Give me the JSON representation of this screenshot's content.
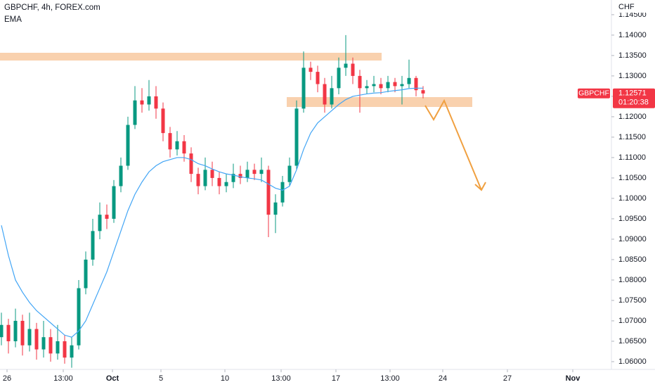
{
  "chart_data": {
    "type": "candlestick",
    "title": "GBPCHF, 4h, FOREX.com",
    "currency": "CHF",
    "last_price": 1.12571,
    "countdown": "01:20:38",
    "ylim": [
      1.0581,
      1.1486
    ],
    "yticks": [
      {
        "value": 1.06,
        "label": "1.06000"
      },
      {
        "value": 1.065,
        "label": "1.06500"
      },
      {
        "value": 1.07,
        "label": "1.07000"
      },
      {
        "value": 1.075,
        "label": "1.07500"
      },
      {
        "value": 1.08,
        "label": "1.08000"
      },
      {
        "value": 1.085,
        "label": "1.08500"
      },
      {
        "value": 1.09,
        "label": "1.09000"
      },
      {
        "value": 1.095,
        "label": "1.09500"
      },
      {
        "value": 1.1,
        "label": "1.10000"
      },
      {
        "value": 1.105,
        "label": "1.10500"
      },
      {
        "value": 1.11,
        "label": "1.11000"
      },
      {
        "value": 1.115,
        "label": "1.11500"
      },
      {
        "value": 1.12,
        "label": "1.12000"
      },
      {
        "value": 1.125,
        "label": "1.12500"
      },
      {
        "value": 1.13,
        "label": "1.13000"
      },
      {
        "value": 1.135,
        "label": "1.13500"
      },
      {
        "value": 1.14,
        "label": "1.14000"
      },
      {
        "value": 1.145,
        "label": "1.14500"
      }
    ],
    "xlim": [
      -0.2,
      86.8
    ],
    "xticks": [
      {
        "value": 0.8,
        "label": "26"
      },
      {
        "value": 8.8,
        "label": "13:00"
      },
      {
        "value": 15.8,
        "label": "Oct"
      },
      {
        "value": 22.7,
        "label": "5"
      },
      {
        "value": 31.8,
        "label": "10"
      },
      {
        "value": 39.8,
        "label": "13:00"
      },
      {
        "value": 47.6,
        "label": "17"
      },
      {
        "value": 55.3,
        "label": "13:00"
      },
      {
        "value": 62.8,
        "label": "24"
      },
      {
        "value": 72,
        "label": "27"
      },
      {
        "value": 81.3,
        "label": "Nov"
      }
    ],
    "grid": false,
    "series": [
      {
        "name": "GBPCHF",
        "type": "candlestick",
        "up_color": "#089981",
        "down_color": "#f23645",
        "open": [
          1.066,
          1.069,
          1.065,
          1.07,
          1.064,
          1.068,
          1.063,
          1.066,
          1.062,
          1.065,
          1.061,
          1.064,
          1.078,
          1.085,
          1.092,
          1.096,
          1.095,
          1.103,
          1.108,
          1.118,
          1.124,
          1.123,
          1.125,
          1.122,
          1.116,
          1.112,
          1.114,
          1.111,
          1.106,
          1.103,
          1.107,
          1.105,
          1.103,
          1.104,
          1.106,
          1.105,
          1.107,
          1.106,
          1.107,
          1.096,
          1.099,
          1.104,
          1.108,
          1.122,
          1.132,
          1.131,
          1.128,
          1.123,
          1.127,
          1.132,
          1.133,
          1.13,
          1.127,
          1.1275,
          1.128,
          1.127,
          1.1285,
          1.1275,
          1.128,
          1.1295,
          1.1265
        ],
        "high": [
          1.072,
          1.0705,
          1.073,
          1.0715,
          1.072,
          1.0695,
          1.07,
          1.068,
          1.069,
          1.0665,
          1.066,
          1.08,
          1.087,
          1.095,
          1.099,
          1.0985,
          1.1045,
          1.11,
          1.12,
          1.1275,
          1.127,
          1.129,
          1.1275,
          1.1235,
          1.1175,
          1.1165,
          1.1155,
          1.1125,
          1.1075,
          1.11,
          1.109,
          1.1065,
          1.106,
          1.1085,
          1.108,
          1.109,
          1.1085,
          1.11,
          1.108,
          1.101,
          1.1055,
          1.11,
          1.124,
          1.136,
          1.1335,
          1.1325,
          1.1295,
          1.13,
          1.1345,
          1.14,
          1.1345,
          1.1315,
          1.129,
          1.13,
          1.1295,
          1.13,
          1.1295,
          1.13,
          1.134,
          1.13,
          1.1275
        ],
        "low": [
          1.064,
          1.062,
          1.0635,
          1.0615,
          1.0625,
          1.0605,
          1.061,
          1.06,
          1.0605,
          1.0595,
          1.0585,
          1.063,
          1.0765,
          1.0835,
          1.09,
          1.0925,
          1.094,
          1.1015,
          1.107,
          1.117,
          1.121,
          1.1215,
          1.1195,
          1.114,
          1.11,
          1.1105,
          1.109,
          1.104,
          1.101,
          1.102,
          1.103,
          1.101,
          1.1015,
          1.1025,
          1.1035,
          1.104,
          1.1045,
          1.104,
          1.0905,
          1.0915,
          1.098,
          1.103,
          1.107,
          1.121,
          1.129,
          1.126,
          1.121,
          1.122,
          1.1255,
          1.13,
          1.128,
          1.121,
          1.1255,
          1.126,
          1.1255,
          1.126,
          1.126,
          1.123,
          1.127,
          1.125,
          1.1245
        ],
        "close": [
          1.069,
          1.065,
          1.07,
          1.064,
          1.068,
          1.063,
          1.066,
          1.062,
          1.065,
          1.061,
          1.064,
          1.078,
          1.085,
          1.092,
          1.096,
          1.095,
          1.103,
          1.108,
          1.118,
          1.124,
          1.123,
          1.125,
          1.122,
          1.116,
          1.112,
          1.114,
          1.111,
          1.106,
          1.103,
          1.107,
          1.105,
          1.103,
          1.104,
          1.106,
          1.105,
          1.107,
          1.106,
          1.107,
          1.096,
          1.099,
          1.104,
          1.108,
          1.122,
          1.132,
          1.131,
          1.128,
          1.123,
          1.127,
          1.132,
          1.133,
          1.13,
          1.127,
          1.1275,
          1.128,
          1.127,
          1.1285,
          1.1275,
          1.128,
          1.1295,
          1.1265,
          1.1257
        ]
      },
      {
        "name": "EMA",
        "type": "line",
        "color": "#42a5f5",
        "values": [
          1.0934,
          1.086,
          1.08,
          1.077,
          1.0745,
          1.0725,
          1.071,
          1.0695,
          1.068,
          1.0665,
          1.066,
          1.0675,
          1.07,
          1.074,
          1.078,
          1.082,
          1.087,
          1.092,
          1.097,
          1.101,
          1.104,
          1.1065,
          1.108,
          1.109,
          1.1095,
          1.11,
          1.11,
          1.1095,
          1.1085,
          1.108,
          1.1072,
          1.1065,
          1.106,
          1.1057,
          1.1053,
          1.105,
          1.1048,
          1.1045,
          1.1035,
          1.1025,
          1.102,
          1.103,
          1.107,
          1.112,
          1.116,
          1.1185,
          1.12,
          1.1215,
          1.123,
          1.1242,
          1.125,
          1.1253,
          1.1256,
          1.1258,
          1.1259,
          1.1262,
          1.1264,
          1.1266,
          1.1269,
          1.127,
          1.127
        ]
      }
    ]
  }
}
